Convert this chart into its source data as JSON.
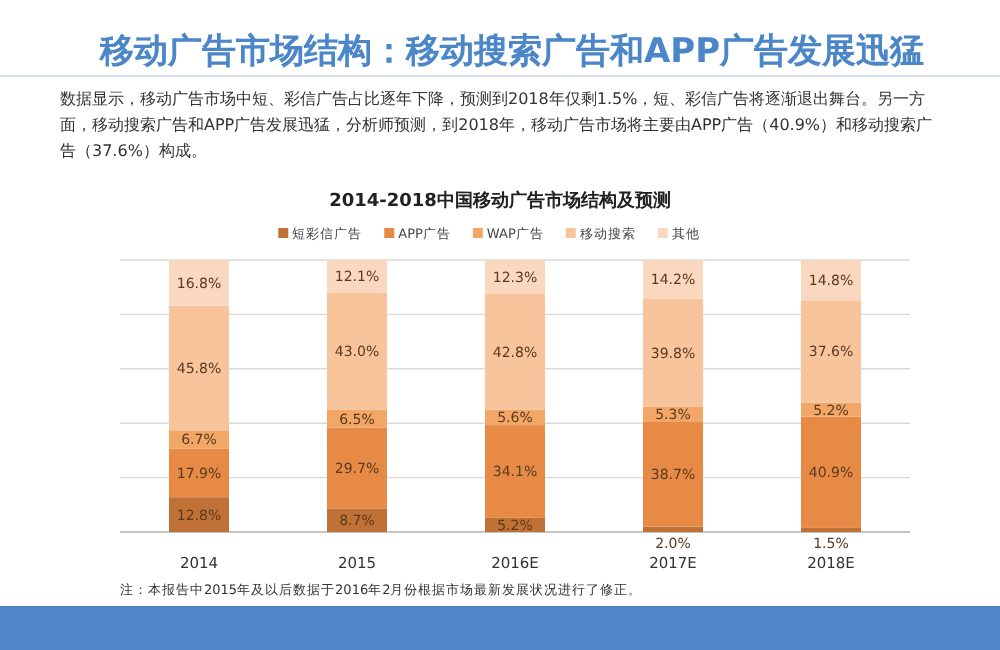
{
  "chart_data": {
    "type": "bar",
    "stacked": true,
    "title": "移动广告市场结构：移动搜索广告和APP广告发展迅猛",
    "subtitle": "2014-2018中国移动广告市场结构及预测",
    "annotations": [
      "数据显示，移动广告市场中短、彩信广告占比逐年下降，预测到2018年仅剩1.5%，短、彩信广告将逐渐退出舞台。另一方面，移动搜索广告和APP广告发展迅猛，分析师预测，到2018年，移动广告市场将主要由APP广告（40.9%）和移动搜索广告（37.6%）构成。",
      "注：本报告中2015年及以后数据于2016年2月份根据市场最新发展状况进行了修正。"
    ],
    "categories": [
      "2014",
      "2015",
      "2016E",
      "2017E",
      "2018E"
    ],
    "ylim": [
      0,
      100
    ],
    "yticks": [
      {
        "value": 0,
        "label": null
      },
      {
        "value": 20,
        "label": null
      },
      {
        "value": 40,
        "label": null
      },
      {
        "value": 60,
        "label": null
      },
      {
        "value": 80,
        "label": null
      },
      {
        "value": 100,
        "label": null
      }
    ],
    "tick_labels": "x",
    "grid": "y",
    "legend": "top",
    "series": [
      {
        "name": "短彩信广告",
        "color": "#c07236",
        "values": [
          12.8,
          8.7,
          5.2,
          2.0,
          1.5
        ],
        "value_labels": [
          "12.8%",
          "8.7%",
          "5.2%",
          "2.0%",
          "1.5%"
        ]
      },
      {
        "name": "APP广告",
        "color": "#e68a45",
        "values": [
          17.9,
          29.7,
          34.1,
          38.7,
          40.9
        ],
        "value_labels": [
          "17.9%",
          "29.7%",
          "34.1%",
          "38.7%",
          "40.9%"
        ]
      },
      {
        "name": "WAP广告",
        "color": "#f3a766",
        "values": [
          6.7,
          6.5,
          5.6,
          5.3,
          5.2
        ],
        "value_labels": [
          "6.7%",
          "6.5%",
          "5.6%",
          "5.3%",
          "5.2%"
        ]
      },
      {
        "name": "移动搜索",
        "color": "#f8c49c",
        "values": [
          45.8,
          43.0,
          42.8,
          39.8,
          37.6
        ],
        "value_labels": [
          "45.8%",
          "43.0%",
          "42.8%",
          "39.8%",
          "37.6%"
        ]
      },
      {
        "name": "其他",
        "color": "#fad8c0",
        "values": [
          16.8,
          12.1,
          12.3,
          14.2,
          14.8
        ],
        "value_labels": [
          "16.8%",
          "12.1%",
          "12.3%",
          "14.2%",
          "14.8%"
        ]
      }
    ]
  }
}
